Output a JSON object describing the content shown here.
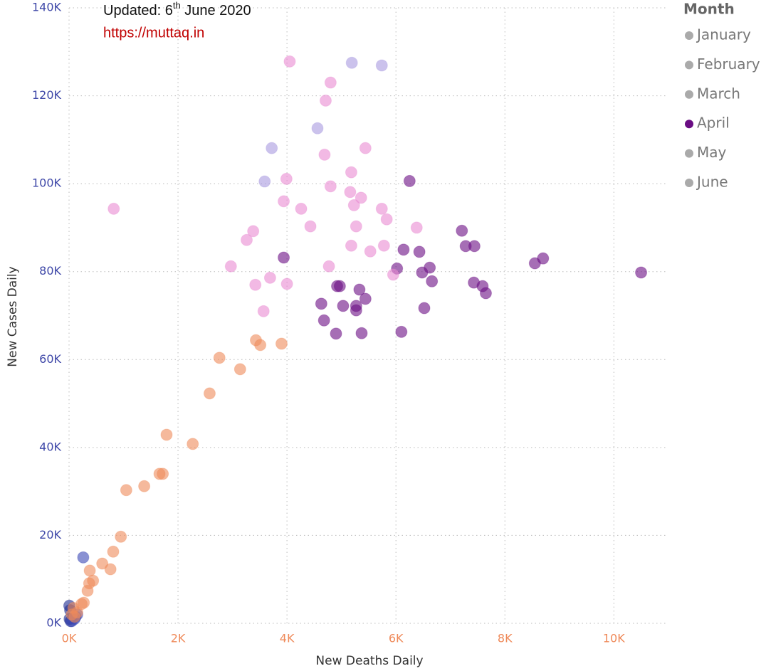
{
  "chart_data": {
    "type": "scatter",
    "annotation": {
      "prefix": "Updated: 6",
      "superscript": "th",
      "suffix": " June 2020"
    },
    "link": "https://muttaq.in",
    "x_label": "New Deaths Daily",
    "y_label": "New Cases Daily",
    "legend_title": "Month",
    "legend_highlight": "April",
    "legend_dim_color": "#aaaaaa",
    "grid": true,
    "xlim": [
      0,
      10950
    ],
    "ylim": [
      0,
      140000
    ],
    "xticks": [
      {
        "value": 0,
        "label": "0K"
      },
      {
        "value": 2000,
        "label": "2K"
      },
      {
        "value": 4000,
        "label": "4K"
      },
      {
        "value": 6000,
        "label": "6K"
      },
      {
        "value": 8000,
        "label": "8K"
      },
      {
        "value": 10000,
        "label": "10K"
      }
    ],
    "yticks": [
      {
        "value": 0,
        "label": "0K"
      },
      {
        "value": 20000,
        "label": "20K"
      },
      {
        "value": 40000,
        "label": "40K"
      },
      {
        "value": 60000,
        "label": "60K"
      },
      {
        "value": 80000,
        "label": "80K"
      },
      {
        "value": 100000,
        "label": "100K"
      },
      {
        "value": 120000,
        "label": "120K"
      },
      {
        "value": 140000,
        "label": "140K"
      }
    ],
    "series": [
      {
        "name": "January",
        "color": "#1c2a8f",
        "x": [
          10,
          20,
          5,
          30
        ],
        "values": [
          1000,
          3000,
          4000,
          500
        ]
      },
      {
        "name": "February",
        "color": "#3b48b5",
        "x": [
          260,
          100,
          150,
          50,
          120
        ],
        "values": [
          15000,
          1000,
          2000,
          500,
          1500
        ]
      },
      {
        "name": "March",
        "color": "#ef8a5a",
        "x": [
          100,
          150,
          80,
          50,
          230,
          270,
          340,
          370,
          440,
          380,
          610,
          760,
          810,
          950,
          1050,
          1380,
          1660,
          1720,
          1790,
          2270,
          2580,
          2760,
          3140,
          3430,
          3510,
          3900
        ],
        "values": [
          1500,
          2500,
          3500,
          2000,
          4400,
          4700,
          7400,
          9100,
          9700,
          12000,
          13600,
          12300,
          16300,
          19700,
          30300,
          31200,
          34000,
          34000,
          42900,
          40800,
          52300,
          60400,
          57800,
          64400,
          63300,
          63600
        ]
      },
      {
        "name": "April",
        "color": "#6a0d83",
        "x": [
          6250,
          3940,
          7210,
          7280,
          7440,
          6140,
          6430,
          6020,
          6620,
          6480,
          6660,
          7430,
          7590,
          7650,
          8550,
          8700,
          10500,
          4920,
          4970,
          5330,
          5440,
          4630,
          5030,
          5270,
          5270,
          6520,
          4680,
          4900,
          5370,
          6100
        ],
        "values": [
          100600,
          83200,
          89300,
          85800,
          85800,
          85000,
          84500,
          80700,
          80900,
          79800,
          77800,
          77500,
          76700,
          75100,
          81900,
          83000,
          79800,
          76700,
          76700,
          75900,
          73800,
          72700,
          72200,
          72200,
          71200,
          71700,
          68900,
          65900,
          66000,
          66300
        ]
      },
      {
        "name": "May",
        "color": "#e98ad2",
        "x": [
          4050,
          4800,
          4710,
          4690,
          5440,
          3990,
          5180,
          4800,
          5160,
          5360,
          5230,
          3940,
          4260,
          5740,
          820,
          5830,
          4430,
          5270,
          6380,
          3380,
          3260,
          5180,
          5780,
          5530,
          2970,
          4770,
          3690,
          5950,
          3420,
          4000,
          3570
        ],
        "values": [
          127800,
          123000,
          118900,
          106600,
          108100,
          101100,
          102600,
          99400,
          98100,
          96800,
          95100,
          96000,
          94300,
          94300,
          94300,
          91900,
          90300,
          90300,
          90000,
          89200,
          87200,
          85900,
          85900,
          84600,
          81200,
          81200,
          78600,
          79300,
          77000,
          77200,
          71000
        ]
      },
      {
        "name": "June",
        "color": "#a99ae0",
        "x": [
          5190,
          5740,
          4560,
          3720,
          3590
        ],
        "values": [
          127500,
          126900,
          112600,
          108100,
          100500
        ]
      }
    ]
  }
}
